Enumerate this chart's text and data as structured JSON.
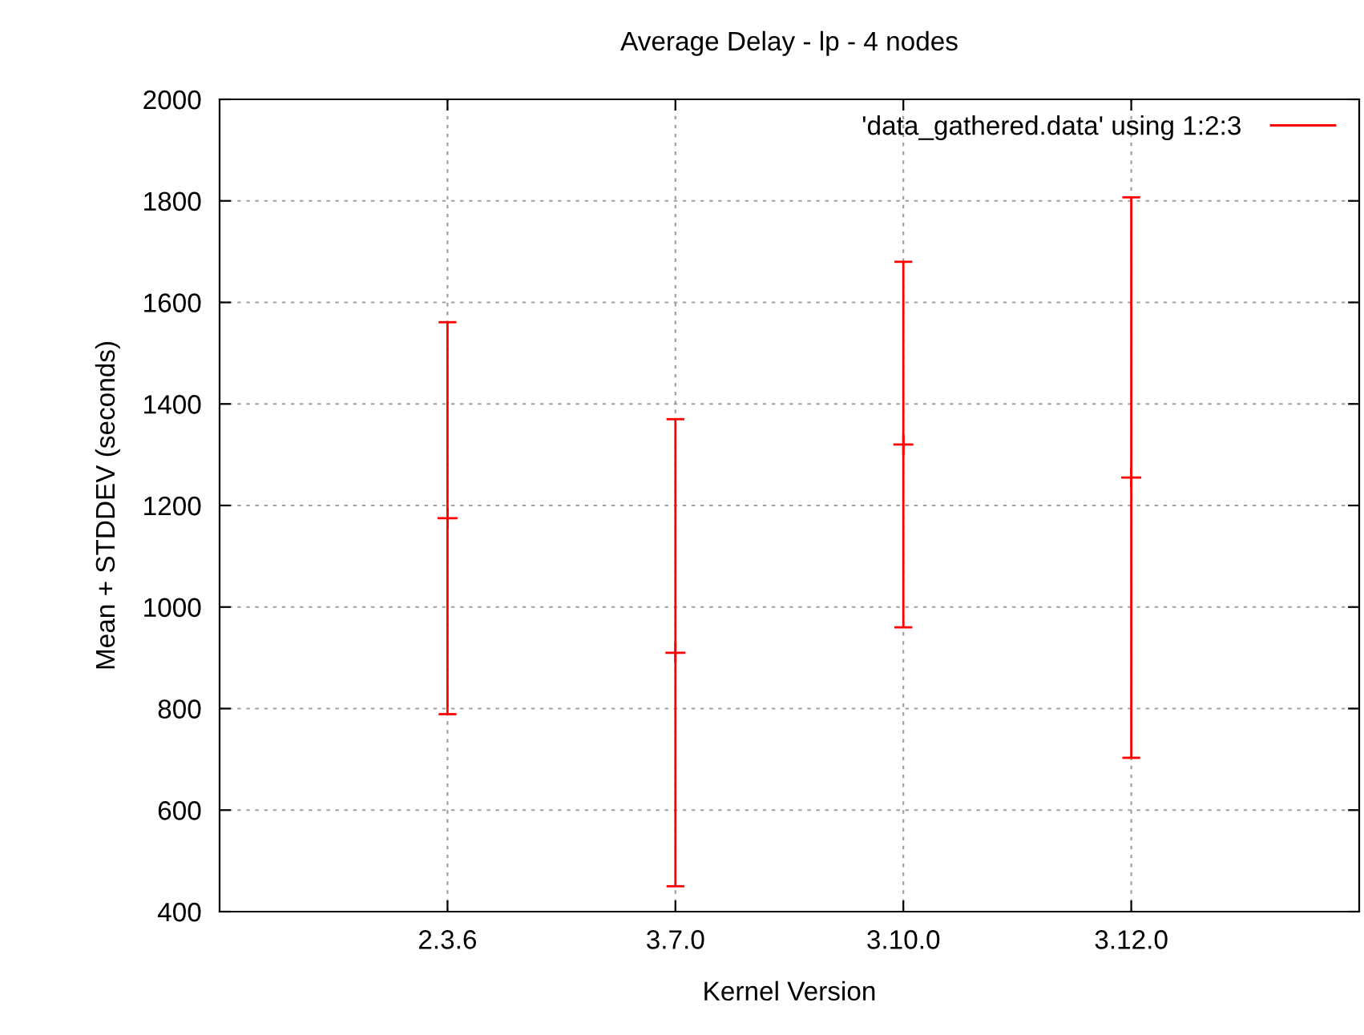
{
  "chart_data": {
    "type": "scatter",
    "title": "Average Delay - lp - 4 nodes",
    "xlabel": "Kernel Version",
    "ylabel": "Mean + STDDEV (seconds)",
    "categories": [
      "2.3.6",
      "3.7.0",
      "3.10.0",
      "3.12.0"
    ],
    "series": [
      {
        "name": "'data_gathered.data' using 1:2:3",
        "color": "#ff0000",
        "values": [
          1175,
          910,
          1320,
          1255
        ],
        "errors": [
          386,
          460,
          360,
          552
        ]
      }
    ],
    "ylim": [
      400,
      2000
    ],
    "yticks": [
      400,
      600,
      800,
      1000,
      1200,
      1400,
      1600,
      1800,
      2000
    ],
    "grid": true,
    "legend": "top right",
    "marker": "cross"
  }
}
